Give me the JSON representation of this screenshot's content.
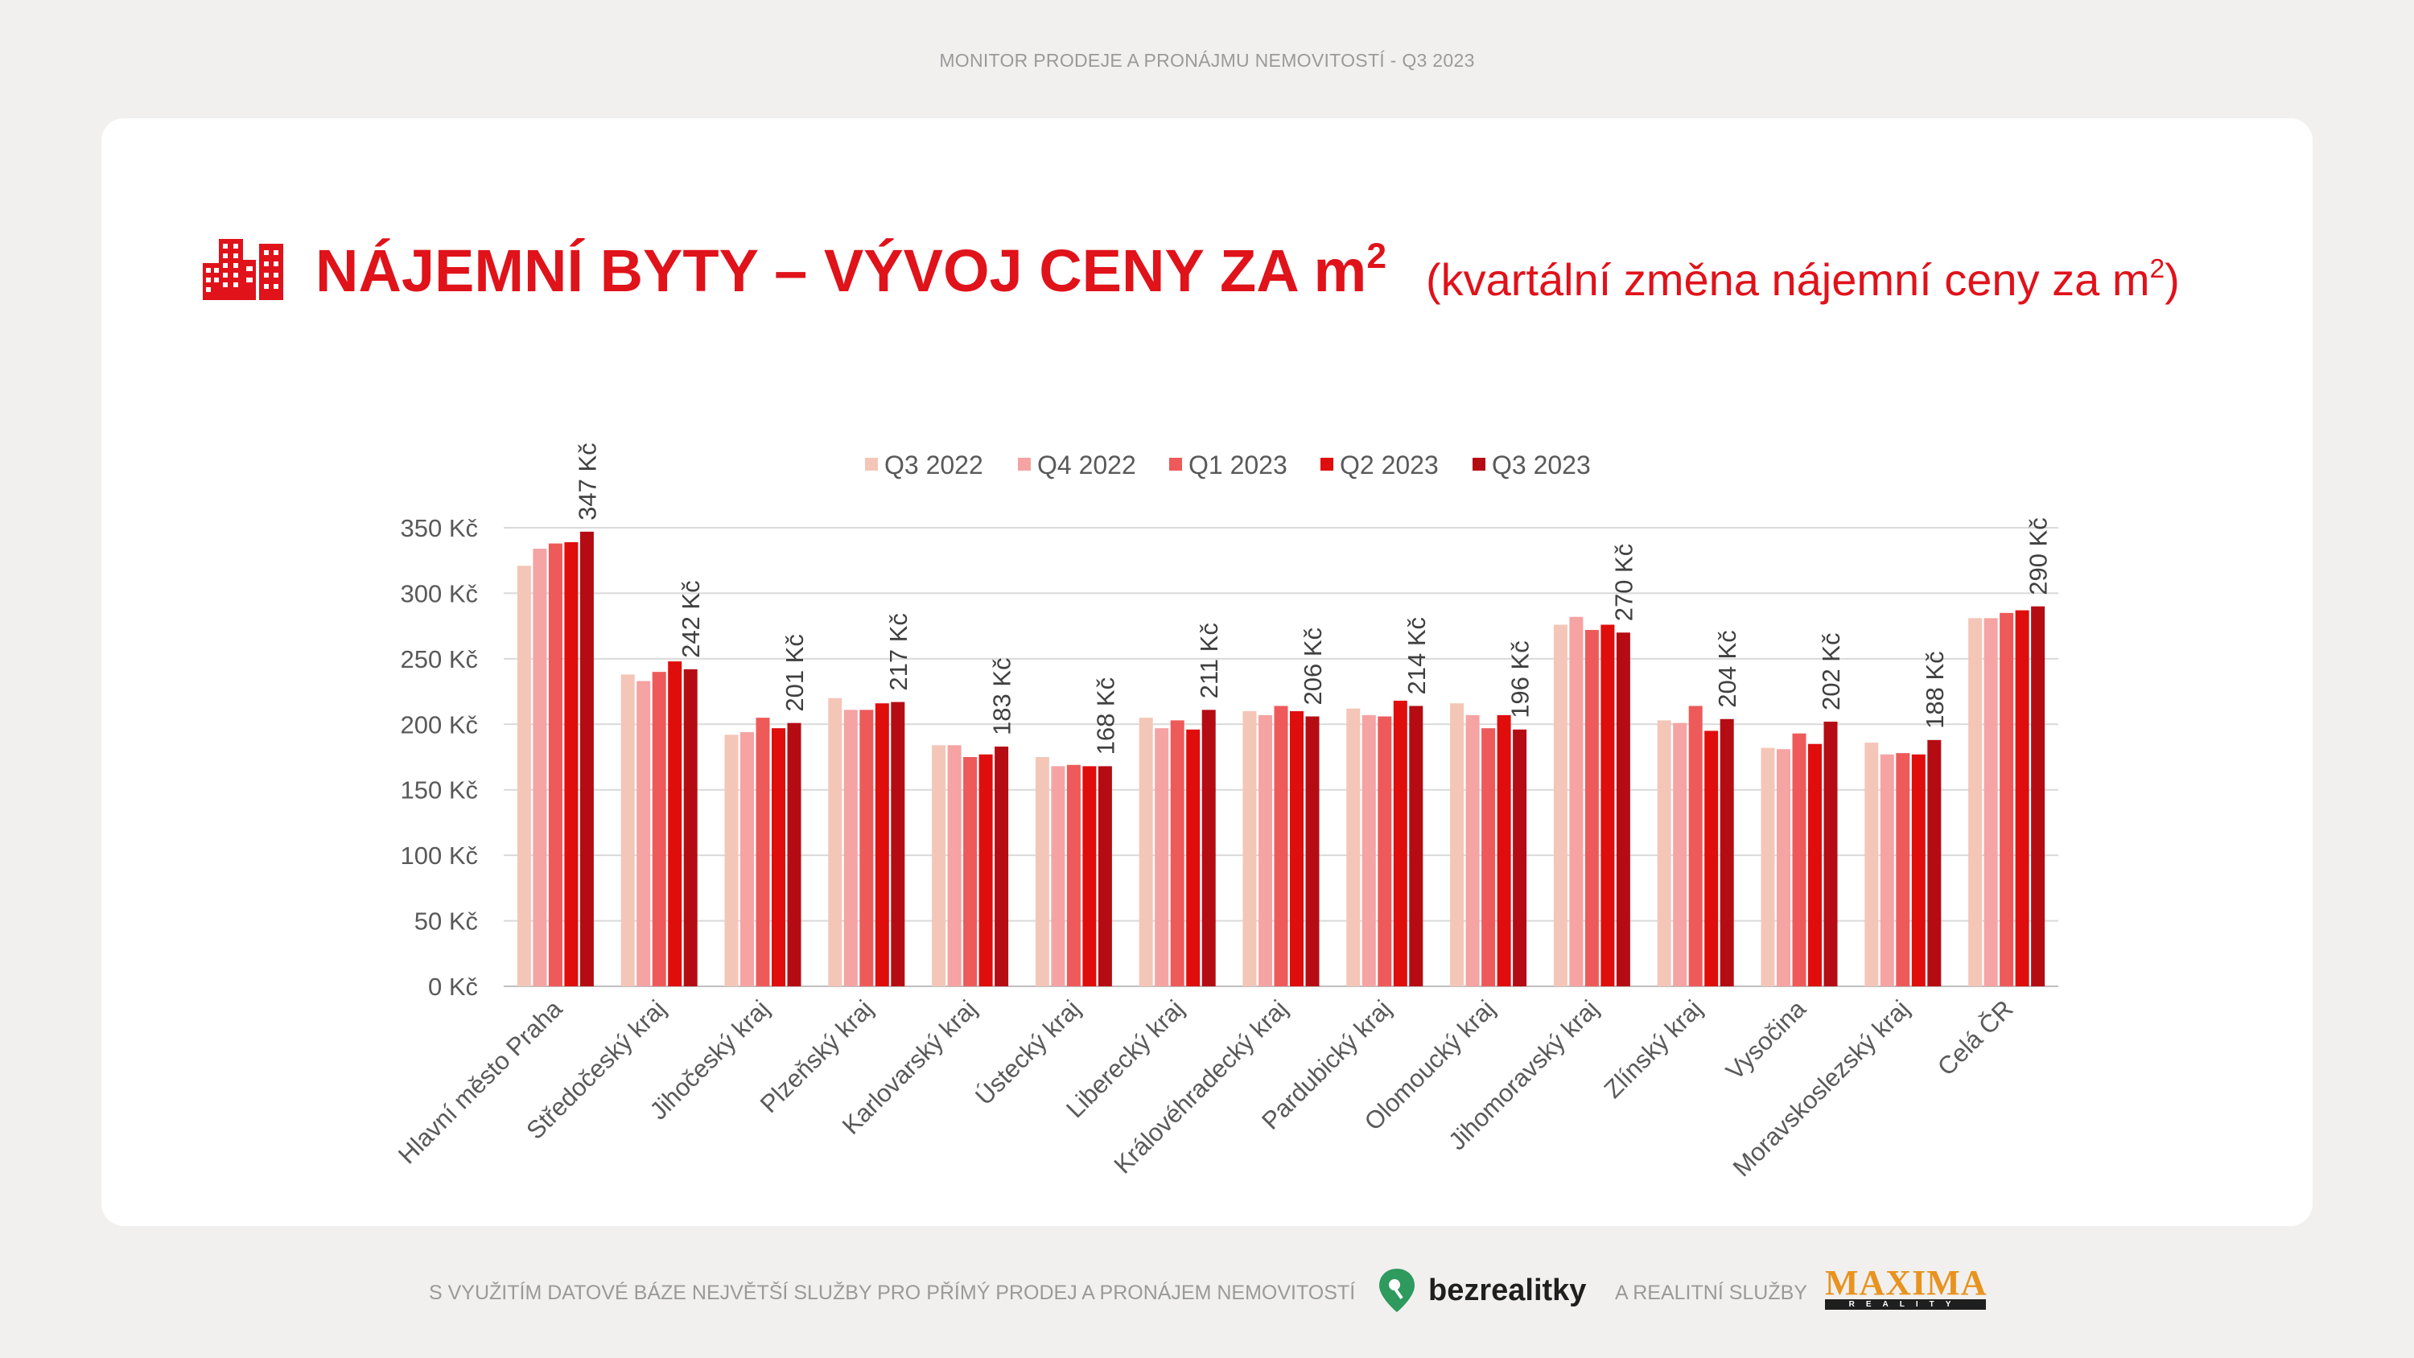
{
  "header": {
    "text": "MONITOR PRODEJE A PRONÁJMU NEMOVITOSTÍ  - Q3 2023"
  },
  "title": {
    "icon": "buildings-icon",
    "main": "NÁJEMNÍ BYTY – VÝVOJ CENY ZA m",
    "main_sup": "2",
    "sub": "(kvartální změna nájemní ceny za m",
    "sub_sup": "2",
    "sub_end": ")"
  },
  "colors": {
    "accent": "#e0121a",
    "series": [
      "#f4c6b8",
      "#f5a3a3",
      "#ee5a5a",
      "#e00d0d",
      "#b50c14"
    ]
  },
  "chart_data": {
    "type": "bar",
    "title": "NÁJEMNÍ BYTY – VÝVOJ CENY ZA m²",
    "ylim": [
      0,
      350
    ],
    "y_ticks": [
      "0 Kč",
      "50 Kč",
      "100 Kč",
      "150 Kč",
      "200 Kč",
      "250 Kč",
      "300 Kč",
      "350 Kč"
    ],
    "grid": true,
    "legend_position": "top",
    "categories": [
      "Hlavní město Praha",
      "Středočeský kraj",
      "Jihočeský kraj",
      "Plzeňský kraj",
      "Karlovarský kraj",
      "Ústecký kraj",
      "Liberecký kraj",
      "Královéhradecký kraj",
      "Pardubický kraj",
      "Olomoucký kraj",
      "Jihomoravský kraj",
      "Zlínský kraj",
      "Vysočina",
      "Moravskoslezský kraj",
      "Celá ČR"
    ],
    "series": [
      {
        "name": "Q3 2022",
        "values": [
          321,
          238,
          192,
          220,
          184,
          175,
          205,
          210,
          212,
          216,
          276,
          203,
          182,
          186,
          281
        ]
      },
      {
        "name": "Q4 2022",
        "values": [
          334,
          233,
          194,
          211,
          184,
          168,
          197,
          207,
          207,
          207,
          282,
          201,
          181,
          177,
          281
        ]
      },
      {
        "name": "Q1 2023",
        "values": [
          338,
          240,
          205,
          211,
          175,
          169,
          203,
          214,
          206,
          197,
          272,
          214,
          193,
          178,
          285
        ]
      },
      {
        "name": "Q2 2023",
        "values": [
          339,
          248,
          197,
          216,
          177,
          168,
          196,
          210,
          218,
          207,
          276,
          195,
          185,
          177,
          287
        ]
      },
      {
        "name": "Q3 2023",
        "values": [
          347,
          242,
          201,
          217,
          183,
          168,
          211,
          206,
          214,
          196,
          270,
          204,
          202,
          188,
          290
        ]
      }
    ],
    "data_labels": [
      "347 Kč",
      "242 Kč",
      "201 Kč",
      "217 Kč",
      "183 Kč",
      "168 Kč",
      "211 Kč",
      "206 Kč",
      "214 Kč",
      "196 Kč",
      "270 Kč",
      "204 Kč",
      "202 Kč",
      "188 Kč",
      "290 Kč"
    ]
  },
  "footer": {
    "text_left": "S VYUŽITÍM DATOVÉ BÁZE NEJVĚTŠÍ SLUŽBY PRO PŘÍMÝ PRODEJ A PRONÁJEM NEMOVITOSTÍ",
    "brand_1": "bezrealitky",
    "text_mid": "A REALITNÍ SLUŽBY",
    "brand_2": "MAXIMA",
    "brand_2_small": "REALITY"
  }
}
